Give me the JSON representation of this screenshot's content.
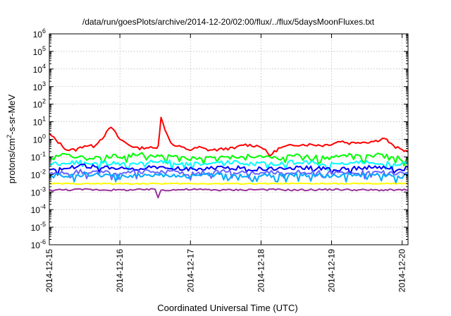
{
  "chart_data": {
    "type": "line",
    "title": "/data/run/goesPlots/archive/2014-12-20/02:00/flux/../flux/5daysMoonFluxes.txt",
    "xlabel": "Coordinated Universal Time (UTC)",
    "ylabel": "protons/cm²-s-sr-MeV",
    "ylabel_base": "protons/cm",
    "ylabel_sup": "2",
    "ylabel_rest": "-s-sr-MeV",
    "yscale": "log",
    "ylim": [
      1e-06,
      1000000.0
    ],
    "y_ticks": [
      {
        "base": "10",
        "exp": "-6"
      },
      {
        "base": "10",
        "exp": "-5"
      },
      {
        "base": "10",
        "exp": "-4"
      },
      {
        "base": "10",
        "exp": "-3"
      },
      {
        "base": "10",
        "exp": "-2"
      },
      {
        "base": "10",
        "exp": "-1"
      },
      {
        "base": "10",
        "exp": "0"
      },
      {
        "base": "10",
        "exp": "1"
      },
      {
        "base": "10",
        "exp": "2"
      },
      {
        "base": "10",
        "exp": "3"
      },
      {
        "base": "10",
        "exp": "4"
      },
      {
        "base": "10",
        "exp": "5"
      },
      {
        "base": "10",
        "exp": "6"
      }
    ],
    "x_ticks": [
      "2014-12-15",
      "2014-12-16",
      "2014-12-17",
      "2014-12-18",
      "2014-12-19",
      "2014-12-20"
    ],
    "xlim": [
      "2014-12-15T00:00",
      "2014-12-20T02:00"
    ],
    "grid": true,
    "series": [
      {
        "color": "#ff0000",
        "x": [
          "2014-12-15T00:00",
          "2014-12-15T03:00",
          "2014-12-15T06:00",
          "2014-12-15T09:00",
          "2014-12-15T12:00",
          "2014-12-15T15:00",
          "2014-12-15T18:00",
          "2014-12-15T21:00",
          "2014-12-16T00:00",
          "2014-12-16T03:00",
          "2014-12-16T06:00",
          "2014-12-16T09:00",
          "2014-12-16T12:00",
          "2014-12-16T13:00",
          "2014-12-16T14:00",
          "2014-12-16T16:00",
          "2014-12-16T18:00",
          "2014-12-16T21:00",
          "2014-12-17T00:00",
          "2014-12-17T03:00",
          "2014-12-17T06:00",
          "2014-12-17T09:00",
          "2014-12-17T12:00",
          "2014-12-17T15:00",
          "2014-12-17T18:00",
          "2014-12-17T21:00",
          "2014-12-18T00:00",
          "2014-12-18T03:00",
          "2014-12-18T06:00",
          "2014-12-18T09:00",
          "2014-12-18T12:00",
          "2014-12-18T15:00",
          "2014-12-18T18:00",
          "2014-12-18T21:00",
          "2014-12-19T00:00",
          "2014-12-19T03:00",
          "2014-12-19T06:00",
          "2014-12-19T09:00",
          "2014-12-19T12:00",
          "2014-12-19T15:00",
          "2014-12-19T18:00",
          "2014-12-19T21:00",
          "2014-12-20T00:00",
          "2014-12-20T02:00"
        ],
        "y": [
          2,
          0.7,
          0.25,
          0.25,
          0.45,
          0.4,
          1.2,
          5,
          1,
          0.5,
          0.3,
          0.35,
          0.3,
          0.45,
          16,
          2,
          0.45,
          0.35,
          0.25,
          0.35,
          0.25,
          0.25,
          0.3,
          0.3,
          0.5,
          0.45,
          0.4,
          0.12,
          0.3,
          0.4,
          0.5,
          0.5,
          0.5,
          0.45,
          0.55,
          0.8,
          0.6,
          0.7,
          0.7,
          0.8,
          1.2,
          0.4,
          0.25,
          0.2
        ]
      },
      {
        "color": "#00ff00",
        "x": [
          "2014-12-15T00:00",
          "2014-12-15T06:00",
          "2014-12-15T12:00",
          "2014-12-15T18:00",
          "2014-12-16T00:00",
          "2014-12-16T06:00",
          "2014-12-16T12:00",
          "2014-12-16T18:00",
          "2014-12-17T00:00",
          "2014-12-17T06:00",
          "2014-12-17T12:00",
          "2014-12-17T18:00",
          "2014-12-18T00:00",
          "2014-12-18T06:00",
          "2014-12-18T12:00",
          "2014-12-18T18:00",
          "2014-12-19T00:00",
          "2014-12-19T06:00",
          "2014-12-19T12:00",
          "2014-12-19T18:00",
          "2014-12-20T00:00",
          "2014-12-20T02:00"
        ],
        "y": [
          0.1,
          0.15,
          0.08,
          0.12,
          0.1,
          0.15,
          0.1,
          0.12,
          0.08,
          0.1,
          0.09,
          0.12,
          0.1,
          0.08,
          0.12,
          0.1,
          0.09,
          0.12,
          0.1,
          0.15,
          0.07,
          0.1
        ]
      },
      {
        "color": "#00ffff",
        "x": [
          "2014-12-15T00:00",
          "2014-12-15T12:00",
          "2014-12-16T00:00",
          "2014-12-16T12:00",
          "2014-12-17T00:00",
          "2014-12-17T12:00",
          "2014-12-18T00:00",
          "2014-12-18T12:00",
          "2014-12-19T00:00",
          "2014-12-19T12:00",
          "2014-12-20T00:00",
          "2014-12-20T02:00"
        ],
        "y": [
          0.04,
          0.05,
          0.04,
          0.06,
          0.04,
          0.05,
          0.04,
          0.05,
          0.04,
          0.05,
          0.04,
          0.05
        ]
      },
      {
        "color": "#0000ff",
        "x": [
          "2014-12-15T00:00",
          "2014-12-15T12:00",
          "2014-12-16T00:00",
          "2014-12-16T12:00",
          "2014-12-17T00:00",
          "2014-12-17T12:00",
          "2014-12-18T00:00",
          "2014-12-18T12:00",
          "2014-12-19T00:00",
          "2014-12-19T12:00",
          "2014-12-20T00:00",
          "2014-12-20T02:00"
        ],
        "y": [
          0.02,
          0.03,
          0.02,
          0.025,
          0.02,
          0.025,
          0.02,
          0.025,
          0.02,
          0.025,
          0.02,
          0.025
        ]
      },
      {
        "color": "#6666ff",
        "x": [
          "2014-12-15T00:00",
          "2014-12-15T12:00",
          "2014-12-16T00:00",
          "2014-12-16T12:00",
          "2014-12-17T00:00",
          "2014-12-17T12:00",
          "2014-12-18T00:00",
          "2014-12-18T12:00",
          "2014-12-19T00:00",
          "2014-12-19T12:00",
          "2014-12-20T00:00",
          "2014-12-20T02:00"
        ],
        "y": [
          0.012,
          0.015,
          0.012,
          0.015,
          0.012,
          0.014,
          0.012,
          0.014,
          0.012,
          0.014,
          0.012,
          0.013
        ]
      },
      {
        "color": "#00aaff",
        "x": [
          "2014-12-15T00:00",
          "2014-12-15T12:00",
          "2014-12-16T00:00",
          "2014-12-16T12:00",
          "2014-12-17T00:00",
          "2014-12-17T12:00",
          "2014-12-18T00:00",
          "2014-12-18T12:00",
          "2014-12-19T00:00",
          "2014-12-19T12:00",
          "2014-12-20T00:00",
          "2014-12-20T02:00"
        ],
        "y": [
          0.008,
          0.01,
          0.008,
          0.01,
          0.008,
          0.01,
          0.008,
          0.01,
          0.008,
          0.01,
          0.008,
          0.009
        ]
      },
      {
        "color": "#ffff00",
        "x": [
          "2014-12-15T00:00",
          "2014-12-16T00:00",
          "2014-12-17T00:00",
          "2014-12-18T00:00",
          "2014-12-19T00:00",
          "2014-12-20T00:00",
          "2014-12-20T02:00"
        ],
        "y": [
          0.003,
          0.003,
          0.003,
          0.003,
          0.003,
          0.003,
          0.003
        ]
      },
      {
        "color": "#993399",
        "x": [
          "2014-12-15T00:00",
          "2014-12-15T12:00",
          "2014-12-16T00:00",
          "2014-12-16T12:00",
          "2014-12-16T13:00",
          "2014-12-16T14:00",
          "2014-12-17T00:00",
          "2014-12-17T12:00",
          "2014-12-18T00:00",
          "2014-12-18T12:00",
          "2014-12-19T00:00",
          "2014-12-19T12:00",
          "2014-12-20T00:00",
          "2014-12-20T02:00"
        ],
        "y": [
          0.0013,
          0.0014,
          0.0013,
          0.0014,
          0.0005,
          0.0013,
          0.0014,
          0.0013,
          0.0014,
          0.0013,
          0.0014,
          0.0013,
          0.0013,
          0.0013
        ]
      }
    ]
  }
}
